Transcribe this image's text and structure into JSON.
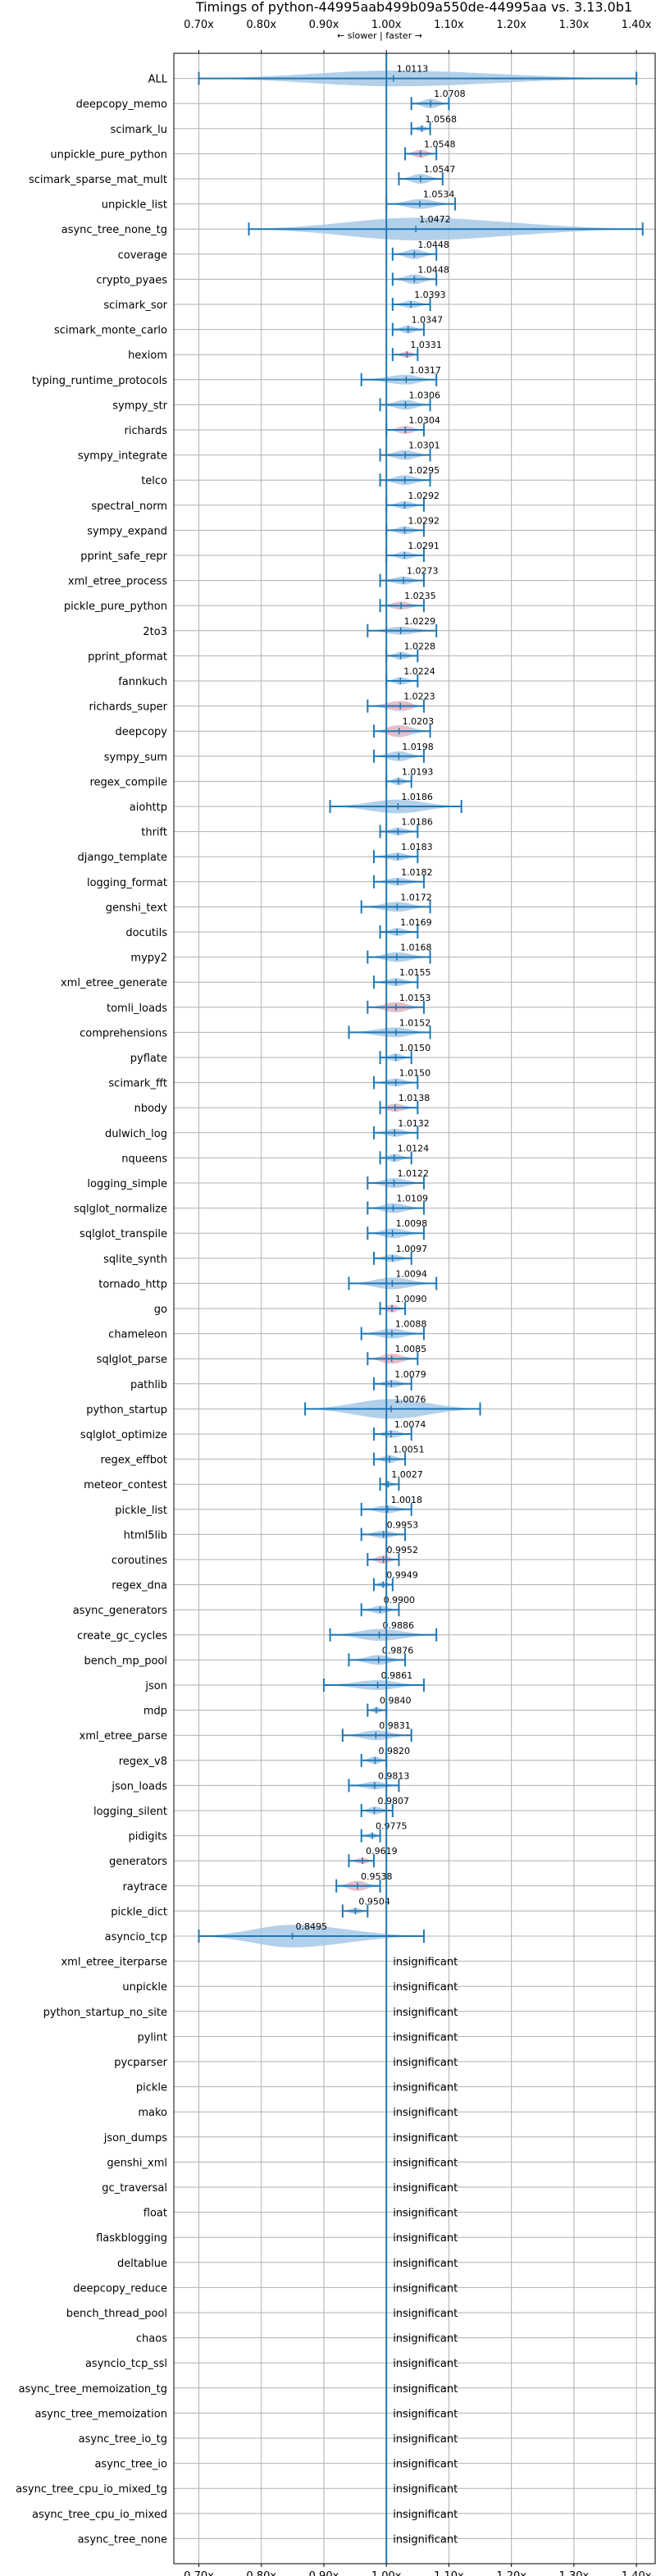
{
  "chart_data": {
    "type": "violin",
    "title": "Timings of python-44995aab499b09a550de-44995aa vs. 3.13.0b1",
    "direction_label": "← slower | faster →",
    "x_ticks": [
      "0.70x",
      "0.80x",
      "0.90x",
      "1.00x",
      "1.10x",
      "1.20x",
      "1.30x",
      "1.40x"
    ],
    "x_tick_values": [
      0.7,
      0.8,
      0.9,
      1.0,
      1.1,
      1.2,
      1.3,
      1.4
    ],
    "xlim": [
      0.66,
      1.43
    ],
    "grid": true,
    "colors": {
      "significant": "#a6c8e8",
      "highlight": "#f5b8c0",
      "axis": "#1f77b4",
      "grid": "#b0b0b0"
    },
    "benchmarks": [
      {
        "name": "ALL",
        "value": 1.0113,
        "label": "1.0113",
        "min": 0.7,
        "max": 1.4,
        "width": 0.08,
        "highlight": false
      },
      {
        "name": "deepcopy_memo",
        "value": 1.0708,
        "label": "1.0708",
        "min": 1.04,
        "max": 1.1,
        "width": 0.05,
        "highlight": false
      },
      {
        "name": "scimark_lu",
        "value": 1.0568,
        "label": "1.0568",
        "min": 1.04,
        "max": 1.07,
        "width": 0.03,
        "highlight": false
      },
      {
        "name": "unpickle_pure_python",
        "value": 1.0548,
        "label": "1.0548",
        "min": 1.03,
        "max": 1.08,
        "width": 0.04,
        "highlight": true
      },
      {
        "name": "scimark_sparse_mat_mult",
        "value": 1.0547,
        "label": "1.0547",
        "min": 1.02,
        "max": 1.09,
        "width": 0.05,
        "highlight": false
      },
      {
        "name": "unpickle_list",
        "value": 1.0534,
        "label": "1.0534",
        "min": 1.0,
        "max": 1.11,
        "width": 0.05,
        "highlight": false
      },
      {
        "name": "async_tree_none_tg",
        "value": 1.0472,
        "label": "1.0472",
        "min": 0.78,
        "max": 1.41,
        "width": 0.25,
        "highlight": false
      },
      {
        "name": "coverage",
        "value": 1.0448,
        "label": "1.0448",
        "min": 1.01,
        "max": 1.08,
        "width": 0.05,
        "highlight": false
      },
      {
        "name": "crypto_pyaes",
        "value": 1.0448,
        "label": "1.0448",
        "min": 1.01,
        "max": 1.08,
        "width": 0.05,
        "highlight": false
      },
      {
        "name": "scimark_sor",
        "value": 1.0393,
        "label": "1.0393",
        "min": 1.01,
        "max": 1.07,
        "width": 0.04,
        "highlight": false
      },
      {
        "name": "scimark_monte_carlo",
        "value": 1.0347,
        "label": "1.0347",
        "min": 1.01,
        "max": 1.06,
        "width": 0.04,
        "highlight": false
      },
      {
        "name": "hexiom",
        "value": 1.0331,
        "label": "1.0331",
        "min": 1.01,
        "max": 1.05,
        "width": 0.03,
        "highlight": true
      },
      {
        "name": "typing_runtime_protocols",
        "value": 1.0317,
        "label": "1.0317",
        "min": 0.96,
        "max": 1.08,
        "width": 0.05,
        "highlight": false
      },
      {
        "name": "sympy_str",
        "value": 1.0306,
        "label": "1.0306",
        "min": 0.99,
        "max": 1.07,
        "width": 0.05,
        "highlight": false
      },
      {
        "name": "richards",
        "value": 1.0304,
        "label": "1.0304",
        "min": 1.0,
        "max": 1.06,
        "width": 0.04,
        "highlight": true
      },
      {
        "name": "sympy_integrate",
        "value": 1.0301,
        "label": "1.0301",
        "min": 0.99,
        "max": 1.07,
        "width": 0.05,
        "highlight": false
      },
      {
        "name": "telco",
        "value": 1.0295,
        "label": "1.0295",
        "min": 0.99,
        "max": 1.07,
        "width": 0.05,
        "highlight": false
      },
      {
        "name": "spectral_norm",
        "value": 1.0292,
        "label": "1.0292",
        "min": 1.0,
        "max": 1.06,
        "width": 0.04,
        "highlight": false
      },
      {
        "name": "sympy_expand",
        "value": 1.0292,
        "label": "1.0292",
        "min": 1.0,
        "max": 1.06,
        "width": 0.04,
        "highlight": false
      },
      {
        "name": "pprint_safe_repr",
        "value": 1.0291,
        "label": "1.0291",
        "min": 1.0,
        "max": 1.06,
        "width": 0.04,
        "highlight": false
      },
      {
        "name": "xml_etree_process",
        "value": 1.0273,
        "label": "1.0273",
        "min": 0.99,
        "max": 1.06,
        "width": 0.04,
        "highlight": false
      },
      {
        "name": "pickle_pure_python",
        "value": 1.0235,
        "label": "1.0235",
        "min": 0.99,
        "max": 1.06,
        "width": 0.04,
        "highlight": true
      },
      {
        "name": "2to3",
        "value": 1.0229,
        "label": "1.0229",
        "min": 0.97,
        "max": 1.08,
        "width": 0.04,
        "highlight": false
      },
      {
        "name": "pprint_pformat",
        "value": 1.0228,
        "label": "1.0228",
        "min": 1.0,
        "max": 1.05,
        "width": 0.04,
        "highlight": false
      },
      {
        "name": "fannkuch",
        "value": 1.0224,
        "label": "1.0224",
        "min": 1.0,
        "max": 1.05,
        "width": 0.04,
        "highlight": false
      },
      {
        "name": "richards_super",
        "value": 1.0223,
        "label": "1.0223",
        "min": 0.97,
        "max": 1.06,
        "width": 0.05,
        "highlight": true
      },
      {
        "name": "deepcopy",
        "value": 1.0203,
        "label": "1.0203",
        "min": 0.98,
        "max": 1.07,
        "width": 0.06,
        "highlight": true
      },
      {
        "name": "sympy_sum",
        "value": 1.0198,
        "label": "1.0198",
        "min": 0.98,
        "max": 1.06,
        "width": 0.05,
        "highlight": false
      },
      {
        "name": "regex_compile",
        "value": 1.0193,
        "label": "1.0193",
        "min": 1.0,
        "max": 1.04,
        "width": 0.04,
        "highlight": false
      },
      {
        "name": "aiohttp",
        "value": 1.0186,
        "label": "1.0186",
        "min": 0.91,
        "max": 1.12,
        "width": 0.07,
        "highlight": false
      },
      {
        "name": "thrift",
        "value": 1.0186,
        "label": "1.0186",
        "min": 0.99,
        "max": 1.05,
        "width": 0.04,
        "highlight": false
      },
      {
        "name": "django_template",
        "value": 1.0183,
        "label": "1.0183",
        "min": 0.98,
        "max": 1.05,
        "width": 0.04,
        "highlight": false
      },
      {
        "name": "logging_format",
        "value": 1.0182,
        "label": "1.0182",
        "min": 0.98,
        "max": 1.06,
        "width": 0.04,
        "highlight": false
      },
      {
        "name": "genshi_text",
        "value": 1.0172,
        "label": "1.0172",
        "min": 0.96,
        "max": 1.07,
        "width": 0.05,
        "highlight": false
      },
      {
        "name": "docutils",
        "value": 1.0169,
        "label": "1.0169",
        "min": 0.99,
        "max": 1.05,
        "width": 0.04,
        "highlight": false
      },
      {
        "name": "mypy2",
        "value": 1.0168,
        "label": "1.0168",
        "min": 0.97,
        "max": 1.07,
        "width": 0.05,
        "highlight": false
      },
      {
        "name": "xml_etree_generate",
        "value": 1.0155,
        "label": "1.0155",
        "min": 0.98,
        "max": 1.05,
        "width": 0.04,
        "highlight": false
      },
      {
        "name": "tomli_loads",
        "value": 1.0153,
        "label": "1.0153",
        "min": 0.97,
        "max": 1.06,
        "width": 0.05,
        "highlight": true
      },
      {
        "name": "comprehensions",
        "value": 1.0152,
        "label": "1.0152",
        "min": 0.94,
        "max": 1.07,
        "width": 0.05,
        "highlight": false
      },
      {
        "name": "pyflate",
        "value": 1.015,
        "label": "1.0150",
        "min": 0.99,
        "max": 1.04,
        "width": 0.04,
        "highlight": false
      },
      {
        "name": "scimark_fft",
        "value": 1.015,
        "label": "1.0150",
        "min": 0.98,
        "max": 1.05,
        "width": 0.04,
        "highlight": false
      },
      {
        "name": "nbody",
        "value": 1.0138,
        "label": "1.0138",
        "min": 0.99,
        "max": 1.05,
        "width": 0.04,
        "highlight": true
      },
      {
        "name": "dulwich_log",
        "value": 1.0132,
        "label": "1.0132",
        "min": 0.98,
        "max": 1.05,
        "width": 0.04,
        "highlight": false
      },
      {
        "name": "nqueens",
        "value": 1.0124,
        "label": "1.0124",
        "min": 0.99,
        "max": 1.04,
        "width": 0.04,
        "highlight": false
      },
      {
        "name": "logging_simple",
        "value": 1.0122,
        "label": "1.0122",
        "min": 0.97,
        "max": 1.06,
        "width": 0.05,
        "highlight": false
      },
      {
        "name": "sqlglot_normalize",
        "value": 1.0109,
        "label": "1.0109",
        "min": 0.97,
        "max": 1.06,
        "width": 0.05,
        "highlight": false
      },
      {
        "name": "sqlglot_transpile",
        "value": 1.0098,
        "label": "1.0098",
        "min": 0.97,
        "max": 1.06,
        "width": 0.05,
        "highlight": false
      },
      {
        "name": "sqlite_synth",
        "value": 1.0097,
        "label": "1.0097",
        "min": 0.98,
        "max": 1.04,
        "width": 0.04,
        "highlight": false
      },
      {
        "name": "tornado_http",
        "value": 1.0094,
        "label": "1.0094",
        "min": 0.94,
        "max": 1.08,
        "width": 0.06,
        "highlight": false
      },
      {
        "name": "go",
        "value": 1.009,
        "label": "1.0090",
        "min": 0.99,
        "max": 1.03,
        "width": 0.04,
        "highlight": true
      },
      {
        "name": "chameleon",
        "value": 1.0088,
        "label": "1.0088",
        "min": 0.96,
        "max": 1.06,
        "width": 0.05,
        "highlight": false
      },
      {
        "name": "sqlglot_parse",
        "value": 1.0085,
        "label": "1.0085",
        "min": 0.97,
        "max": 1.05,
        "width": 0.05,
        "highlight": true
      },
      {
        "name": "pathlib",
        "value": 1.0079,
        "label": "1.0079",
        "min": 0.98,
        "max": 1.04,
        "width": 0.04,
        "highlight": false
      },
      {
        "name": "python_startup",
        "value": 1.0076,
        "label": "1.0076",
        "min": 0.87,
        "max": 1.15,
        "width": 0.1,
        "highlight": false
      },
      {
        "name": "sqlglot_optimize",
        "value": 1.0074,
        "label": "1.0074",
        "min": 0.98,
        "max": 1.04,
        "width": 0.04,
        "highlight": false
      },
      {
        "name": "regex_effbot",
        "value": 1.0051,
        "label": "1.0051",
        "min": 0.98,
        "max": 1.03,
        "width": 0.04,
        "highlight": false
      },
      {
        "name": "meteor_contest",
        "value": 1.0027,
        "label": "1.0027",
        "min": 0.99,
        "max": 1.02,
        "width": 0.03,
        "highlight": false
      },
      {
        "name": "pickle_list",
        "value": 1.0018,
        "label": "1.0018",
        "min": 0.96,
        "max": 1.04,
        "width": 0.04,
        "highlight": false
      },
      {
        "name": "html5lib",
        "value": 0.9953,
        "label": "0.9953",
        "min": 0.96,
        "max": 1.03,
        "width": 0.04,
        "highlight": false
      },
      {
        "name": "coroutines",
        "value": 0.9952,
        "label": "0.9952",
        "min": 0.97,
        "max": 1.02,
        "width": 0.04,
        "highlight": true
      },
      {
        "name": "regex_dna",
        "value": 0.9949,
        "label": "0.9949",
        "min": 0.98,
        "max": 1.01,
        "width": 0.03,
        "highlight": false
      },
      {
        "name": "async_generators",
        "value": 0.99,
        "label": "0.9900",
        "min": 0.96,
        "max": 1.02,
        "width": 0.04,
        "highlight": false
      },
      {
        "name": "create_gc_cycles",
        "value": 0.9886,
        "label": "0.9886",
        "min": 0.91,
        "max": 1.08,
        "width": 0.06,
        "highlight": false
      },
      {
        "name": "bench_mp_pool",
        "value": 0.9876,
        "label": "0.9876",
        "min": 0.94,
        "max": 1.03,
        "width": 0.05,
        "highlight": false
      },
      {
        "name": "json",
        "value": 0.9861,
        "label": "0.9861",
        "min": 0.9,
        "max": 1.06,
        "width": 0.05,
        "highlight": false
      },
      {
        "name": "mdp",
        "value": 0.984,
        "label": "0.9840",
        "min": 0.97,
        "max": 1.0,
        "width": 0.03,
        "highlight": false
      },
      {
        "name": "xml_etree_parse",
        "value": 0.9831,
        "label": "0.9831",
        "min": 0.93,
        "max": 1.04,
        "width": 0.05,
        "highlight": false
      },
      {
        "name": "regex_v8",
        "value": 0.982,
        "label": "0.9820",
        "min": 0.96,
        "max": 1.0,
        "width": 0.04,
        "highlight": false
      },
      {
        "name": "json_loads",
        "value": 0.9813,
        "label": "0.9813",
        "min": 0.94,
        "max": 1.02,
        "width": 0.04,
        "highlight": false
      },
      {
        "name": "logging_silent",
        "value": 0.9807,
        "label": "0.9807",
        "min": 0.96,
        "max": 1.01,
        "width": 0.04,
        "highlight": false
      },
      {
        "name": "pidigits",
        "value": 0.9775,
        "label": "0.9775",
        "min": 0.96,
        "max": 0.99,
        "width": 0.03,
        "highlight": false
      },
      {
        "name": "generators",
        "value": 0.9619,
        "label": "0.9619",
        "min": 0.94,
        "max": 0.98,
        "width": 0.03,
        "highlight": true
      },
      {
        "name": "raytrace",
        "value": 0.9538,
        "label": "0.9538",
        "min": 0.92,
        "max": 0.99,
        "width": 0.05,
        "highlight": true
      },
      {
        "name": "pickle_dict",
        "value": 0.9504,
        "label": "0.9504",
        "min": 0.93,
        "max": 0.97,
        "width": 0.03,
        "highlight": false
      },
      {
        "name": "asyncio_tcp",
        "value": 0.8495,
        "label": "0.8495",
        "min": 0.7,
        "max": 1.06,
        "width": 0.12,
        "highlight": false
      },
      {
        "name": "xml_etree_iterparse",
        "insignificant": true
      },
      {
        "name": "unpickle",
        "insignificant": true
      },
      {
        "name": "python_startup_no_site",
        "insignificant": true
      },
      {
        "name": "pylint",
        "insignificant": true
      },
      {
        "name": "pycparser",
        "insignificant": true
      },
      {
        "name": "pickle",
        "insignificant": true
      },
      {
        "name": "mako",
        "insignificant": true
      },
      {
        "name": "json_dumps",
        "insignificant": true
      },
      {
        "name": "genshi_xml",
        "insignificant": true
      },
      {
        "name": "gc_traversal",
        "insignificant": true
      },
      {
        "name": "float",
        "insignificant": true
      },
      {
        "name": "flaskblogging",
        "insignificant": true
      },
      {
        "name": "deltablue",
        "insignificant": true
      },
      {
        "name": "deepcopy_reduce",
        "insignificant": true
      },
      {
        "name": "bench_thread_pool",
        "insignificant": true
      },
      {
        "name": "chaos",
        "insignificant": true
      },
      {
        "name": "asyncio_tcp_ssl",
        "insignificant": true
      },
      {
        "name": "async_tree_memoization_tg",
        "insignificant": true
      },
      {
        "name": "async_tree_memoization",
        "insignificant": true
      },
      {
        "name": "async_tree_io_tg",
        "insignificant": true
      },
      {
        "name": "async_tree_io",
        "insignificant": true
      },
      {
        "name": "async_tree_cpu_io_mixed_tg",
        "insignificant": true
      },
      {
        "name": "async_tree_cpu_io_mixed",
        "insignificant": true
      },
      {
        "name": "async_tree_none",
        "insignificant": true
      }
    ],
    "insignificant_label": "insignificant"
  }
}
